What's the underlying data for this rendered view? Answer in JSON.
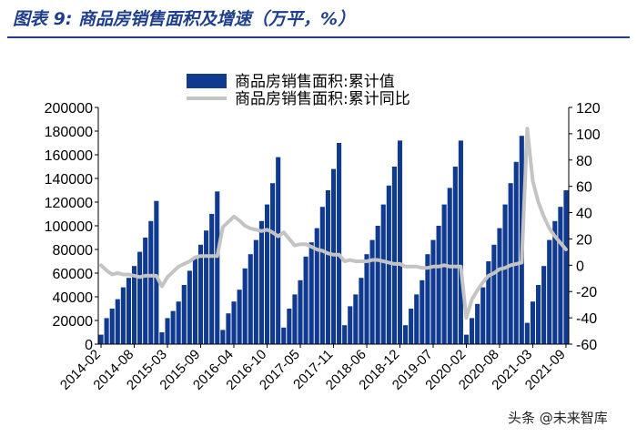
{
  "title": "图表 9:  商品房销售面积及增速（万平，%）",
  "watermark": "头条 @未来智库",
  "colors": {
    "bar": "#0f3a8f",
    "line": "#c4c4c4",
    "title": "#1f3f8c",
    "axis": "#000000"
  },
  "chart_data": {
    "type": "bar+line",
    "legend": [
      {
        "name": "商品房销售面积:累计值",
        "kind": "bar"
      },
      {
        "name": "商品房销售面积:累计同比",
        "kind": "line"
      }
    ],
    "legend_position": "top-center",
    "y_left": {
      "min": 0,
      "max": 200000,
      "step": 20000,
      "ticks": [
        "0",
        "20000",
        "40000",
        "60000",
        "80000",
        "100000",
        "120000",
        "140000",
        "160000",
        "180000",
        "200000"
      ]
    },
    "y_right": {
      "min": -60,
      "max": 120,
      "step": 20,
      "ticks": [
        "-60",
        "-40",
        "-20",
        "0",
        "20",
        "40",
        "60",
        "80",
        "100",
        "120"
      ]
    },
    "x_tick_labels": [
      "2014-02",
      "2014-08",
      "2015-03",
      "2015-09",
      "2016-04",
      "2016-10",
      "2017-05",
      "2017-11",
      "2018-06",
      "2018-12",
      "2019-07",
      "2020-02",
      "2020-08",
      "2021-03",
      "2021-09"
    ],
    "x_tick_index": [
      0,
      6,
      12,
      18,
      24,
      30,
      36,
      42,
      48,
      54,
      60,
      66,
      72,
      78,
      84
    ],
    "periods": [
      "2014-02",
      "2014-03",
      "2014-04",
      "2014-05",
      "2014-06",
      "2014-07",
      "2014-08",
      "2014-09",
      "2014-10",
      "2014-11",
      "2014-12",
      "2015-02",
      "2015-03",
      "2015-04",
      "2015-05",
      "2015-06",
      "2015-07",
      "2015-08",
      "2015-09",
      "2015-10",
      "2015-11",
      "2015-12",
      "2016-02",
      "2016-03",
      "2016-04",
      "2016-05",
      "2016-06",
      "2016-07",
      "2016-08",
      "2016-09",
      "2016-10",
      "2016-11",
      "2016-12",
      "2017-02",
      "2017-03",
      "2017-04",
      "2017-05",
      "2017-06",
      "2017-07",
      "2017-08",
      "2017-09",
      "2017-10",
      "2017-11",
      "2017-12",
      "2018-02",
      "2018-03",
      "2018-04",
      "2018-05",
      "2018-06",
      "2018-07",
      "2018-08",
      "2018-09",
      "2018-10",
      "2018-11",
      "2018-12",
      "2019-02",
      "2019-03",
      "2019-04",
      "2019-05",
      "2019-06",
      "2019-07",
      "2019-08",
      "2019-09",
      "2019-10",
      "2019-11",
      "2019-12",
      "2020-02",
      "2020-03",
      "2020-04",
      "2020-05",
      "2020-06",
      "2020-07",
      "2020-08",
      "2020-09",
      "2020-10",
      "2020-11",
      "2020-12",
      "2021-02",
      "2021-03",
      "2021-04",
      "2021-05",
      "2021-06",
      "2021-07",
      "2021-08",
      "2021-09"
    ],
    "series": [
      {
        "name": "商品房销售面积:累计值",
        "type": "bar",
        "axis": "left",
        "values": [
          8000,
          22000,
          30000,
          38000,
          48000,
          56000,
          66000,
          78000,
          90000,
          104000,
          121000,
          10000,
          22000,
          28000,
          36000,
          50000,
          62000,
          72000,
          84000,
          96000,
          110000,
          129000,
          12000,
          26000,
          36000,
          46000,
          64000,
          76000,
          88000,
          104000,
          118000,
          136000,
          158000,
          14000,
          30000,
          42000,
          54000,
          74000,
          86000,
          98000,
          116000,
          130000,
          148000,
          170000,
          16000,
          32000,
          42000,
          56000,
          76000,
          88000,
          100000,
          118000,
          134000,
          150000,
          172000,
          16000,
          30000,
          42000,
          54000,
          76000,
          88000,
          100000,
          118000,
          132000,
          150000,
          172000,
          8000,
          22000,
          34000,
          48000,
          70000,
          84000,
          98000,
          118000,
          136000,
          154000,
          176000,
          18000,
          36000,
          50000,
          66000,
          88000,
          104000,
          116000,
          130000
        ]
      },
      {
        "name": "商品房销售面积:累计同比",
        "type": "line",
        "axis": "right",
        "values": [
          0,
          -4,
          -7,
          -6,
          -7,
          -7,
          -8,
          -9,
          -8,
          -8,
          -8,
          -16,
          -9,
          -5,
          -1,
          1,
          3,
          6,
          7,
          7,
          7,
          7,
          29,
          33,
          37,
          34,
          30,
          28,
          27,
          26,
          27,
          25,
          22,
          25,
          20,
          15,
          16,
          16,
          14,
          12,
          11,
          9,
          8,
          8,
          3,
          4,
          3,
          3,
          3,
          4,
          4,
          3,
          2,
          1,
          1,
          -1,
          -1,
          -1,
          -2,
          -2,
          -1,
          -1,
          0,
          -1,
          -1,
          -1,
          -40,
          -26,
          -19,
          -13,
          -8,
          -6,
          -3,
          -2,
          0,
          1,
          2,
          104,
          64,
          48,
          37,
          28,
          22,
          17,
          12
        ]
      }
    ]
  }
}
